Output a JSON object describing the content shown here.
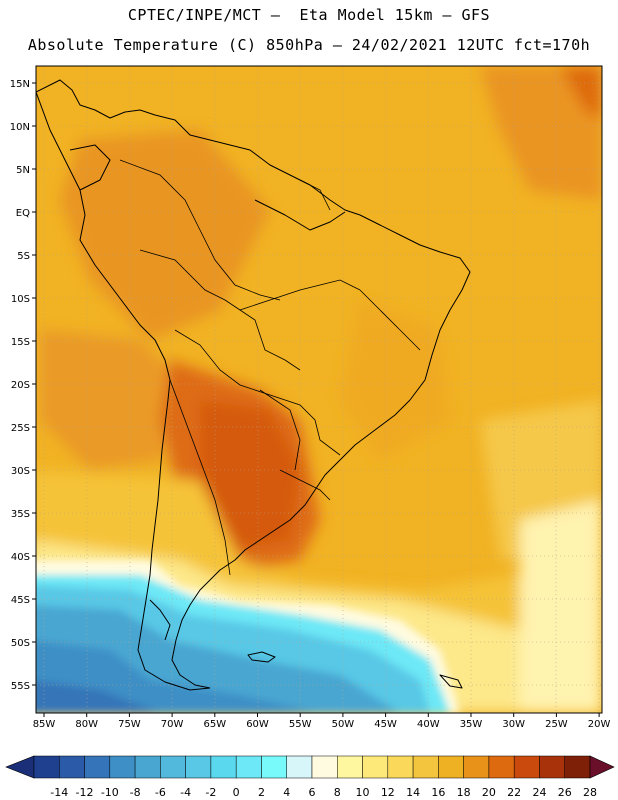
{
  "header": {
    "line1": "CPTEC/INPE/MCT –  Eta Model 15km – GFS",
    "line2": "Absolute Temperature (C) 850hPa – 24/02/2021 12UTC fct=170h"
  },
  "map": {
    "lat_labels": [
      "15N",
      "10N",
      "5N",
      "EQ",
      "5S",
      "10S",
      "15S",
      "20S",
      "25S",
      "30S",
      "35S",
      "40S",
      "45S",
      "50S",
      "55S"
    ],
    "lon_labels": [
      "85W",
      "80W",
      "75W",
      "70W",
      "65W",
      "60W",
      "55W",
      "50W",
      "45W",
      "40W",
      "35W",
      "30W",
      "25W",
      "20W"
    ]
  },
  "colorbar": {
    "labels": [
      "-14",
      "-12",
      "-10",
      "-8",
      "-6",
      "-4",
      "-2",
      "0",
      "2",
      "4",
      "6",
      "8",
      "10",
      "12",
      "14",
      "16",
      "18",
      "20",
      "22",
      "24",
      "26",
      "28"
    ],
    "colors": [
      "#1f3f8f",
      "#2a5aa8",
      "#3574b8",
      "#3d8fc6",
      "#48a6d1",
      "#52b8dc",
      "#58c8e6",
      "#5ad8ee",
      "#6de8f6",
      "#78fafa",
      "#d6f6fa",
      "#fffbe0",
      "#fff6a0",
      "#fde97a",
      "#f9d85a",
      "#f3c43e",
      "#eeb124",
      "#e8921a",
      "#de6a10",
      "#c94a0c",
      "#a8330a",
      "#7e2008"
    ]
  }
}
